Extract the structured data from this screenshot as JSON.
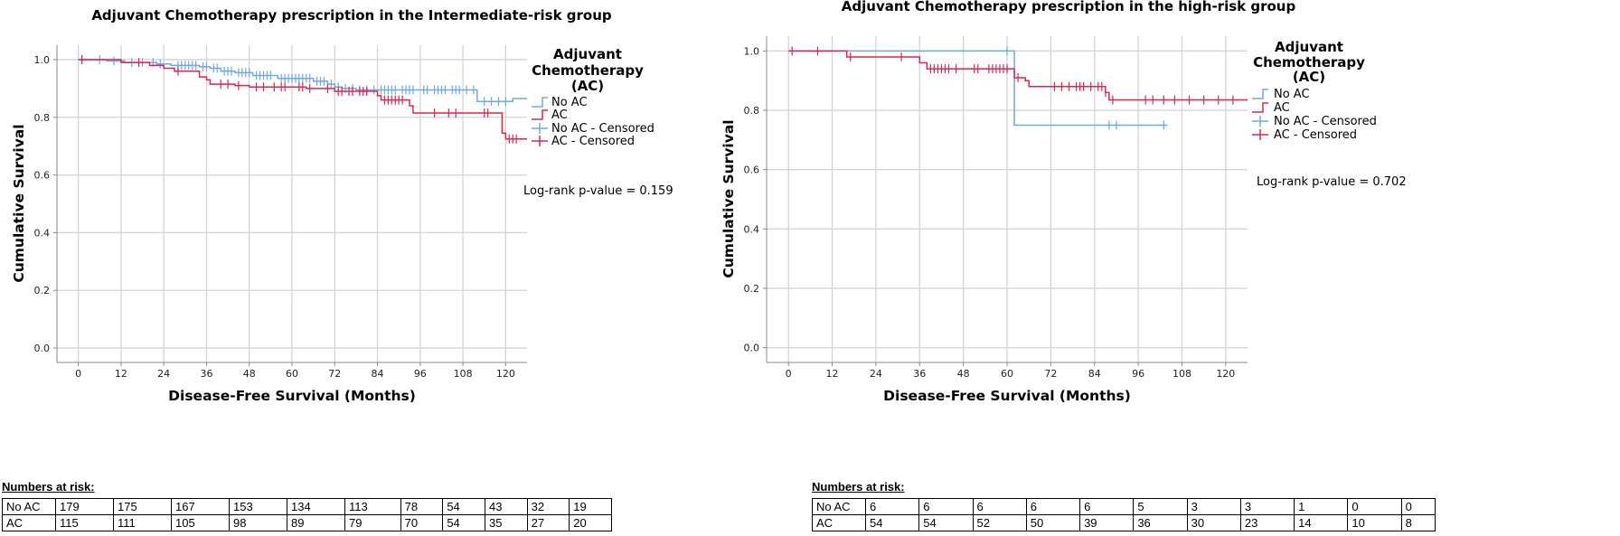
{
  "colors": {
    "no_ac": "#6fa8e6",
    "ac": "#e0234b",
    "grid": "#d4d4d4",
    "axis": "#888888"
  },
  "chart_data": [
    {
      "type": "line",
      "subtype": "kaplan-meier",
      "title": "Adjuvant Chemotherapy prescription in the Intermediate-risk group",
      "xlabel": "Disease-Free Survival (Months)",
      "ylabel": "Cumulative Survival",
      "xlim": [
        -6,
        126
      ],
      "ylim": [
        -0.05,
        1.05
      ],
      "xticks": [
        "0",
        "12",
        "24",
        "36",
        "48",
        "60",
        "72",
        "84",
        "96",
        "108",
        "120"
      ],
      "yticks": [
        "0.0",
        "0.2",
        "0.4",
        "0.6",
        "0.8",
        "1.0"
      ],
      "grid": true,
      "legend": {
        "title": "Adjuvant Chemotherapy (AC)",
        "position": "right",
        "entries": [
          "No AC",
          "AC",
          "No AC - Censored",
          "AC - Censored"
        ]
      },
      "annotation": "Log-rank p-value = 0.159",
      "series": [
        {
          "name": "No AC",
          "x": [
            0,
            8,
            13,
            22,
            26,
            34,
            37,
            40,
            44,
            49,
            56,
            66,
            70,
            72,
            74,
            78,
            84,
            90,
            112,
            122,
            126
          ],
          "y": [
            1.0,
            0.995,
            0.99,
            0.985,
            0.98,
            0.975,
            0.97,
            0.96,
            0.955,
            0.945,
            0.935,
            0.925,
            0.915,
            0.905,
            0.9,
            0.895,
            0.895,
            0.895,
            0.855,
            0.865,
            0.865
          ],
          "censored_x": [
            1,
            6,
            10,
            15,
            18,
            21,
            23,
            28,
            29,
            30,
            31,
            32,
            33,
            35,
            36,
            38,
            39,
            41,
            42,
            43,
            45,
            46,
            47,
            48,
            50,
            51,
            52,
            53,
            54,
            57,
            58,
            59,
            60,
            61,
            62,
            63,
            64,
            65,
            67,
            68,
            69,
            71,
            73,
            75,
            77,
            79,
            81,
            83,
            85,
            86,
            87,
            88,
            89,
            91,
            92,
            93,
            94,
            97,
            98,
            100,
            101,
            102,
            103,
            105,
            106,
            107,
            109,
            111,
            114,
            116,
            118,
            120
          ]
        },
        {
          "name": "AC",
          "x": [
            0,
            12,
            20,
            24,
            27,
            34,
            36,
            37,
            44,
            48,
            64,
            72,
            84,
            85,
            93,
            94,
            118,
            119,
            120,
            126
          ],
          "y": [
            1.0,
            0.99,
            0.98,
            0.97,
            0.96,
            0.94,
            0.93,
            0.915,
            0.91,
            0.905,
            0.9,
            0.89,
            0.875,
            0.86,
            0.84,
            0.815,
            0.815,
            0.745,
            0.725,
            0.725
          ],
          "censored_x": [
            1,
            17,
            28,
            40,
            42,
            45,
            50,
            52,
            55,
            57,
            58,
            62,
            63,
            65,
            70,
            73,
            74,
            76,
            77,
            79,
            80,
            81,
            86,
            87,
            88,
            89,
            90,
            91,
            100,
            104,
            106,
            114,
            115,
            121,
            122,
            123
          ]
        }
      ]
    },
    {
      "type": "line",
      "subtype": "kaplan-meier",
      "title": "Adjuvant Chemotherapy prescription in the high-risk group",
      "xlabel": "Disease-Free Survival (Months)",
      "ylabel": "Cumulative Survival",
      "xlim": [
        -6,
        126
      ],
      "ylim": [
        -0.05,
        1.05
      ],
      "xticks": [
        "0",
        "12",
        "24",
        "36",
        "48",
        "60",
        "72",
        "84",
        "96",
        "108",
        "120"
      ],
      "yticks": [
        "0.0",
        "0.2",
        "0.4",
        "0.6",
        "0.8",
        "1.0"
      ],
      "grid": true,
      "legend": {
        "title": "Adjuvant Chemotherapy (AC)",
        "position": "right",
        "entries": [
          "No AC",
          "AC",
          "No AC - Censored",
          "AC - Censored"
        ]
      },
      "annotation": "Log-rank p-value = 0.702",
      "series": [
        {
          "name": "No AC",
          "x": [
            0,
            62,
            104
          ],
          "y": [
            1.0,
            0.75,
            0.75
          ],
          "censored_x": [
            60,
            88,
            90,
            103
          ]
        },
        {
          "name": "AC",
          "x": [
            0,
            16,
            36,
            38,
            60,
            62,
            65,
            66,
            68,
            87,
            88,
            128
          ],
          "y": [
            1.0,
            0.98,
            0.96,
            0.94,
            0.94,
            0.91,
            0.9,
            0.88,
            0.88,
            0.86,
            0.835,
            0.835
          ],
          "censored_x": [
            1,
            8,
            17,
            31,
            39,
            40,
            41,
            42,
            43,
            44,
            46,
            51,
            52,
            55,
            56,
            57,
            58,
            59,
            60,
            63,
            73,
            75,
            77,
            79,
            80,
            81,
            83,
            85,
            86,
            87,
            89,
            98,
            100,
            103,
            106,
            110,
            114,
            118,
            122,
            126
          ]
        }
      ]
    }
  ],
  "risk_tables": [
    {
      "heading": "Numbers at risk:",
      "rows": [
        {
          "label": "No AC",
          "values": [
            "179",
            "175",
            "167",
            "153",
            "134",
            "113",
            "78",
            "54",
            "43",
            "32",
            "19"
          ]
        },
        {
          "label": "AC",
          "values": [
            "115",
            "111",
            "105",
            "98",
            "89",
            "79",
            "70",
            "54",
            "35",
            "27",
            "20"
          ]
        }
      ]
    },
    {
      "heading": "Numbers at risk:",
      "rows": [
        {
          "label": "No AC",
          "values": [
            "6",
            "6",
            "6",
            "6",
            "6",
            "5",
            "3",
            "3",
            "1",
            "0",
            "0"
          ]
        },
        {
          "label": "AC",
          "values": [
            "54",
            "54",
            "52",
            "50",
            "39",
            "36",
            "30",
            "23",
            "14",
            "10",
            "8"
          ]
        }
      ]
    }
  ]
}
